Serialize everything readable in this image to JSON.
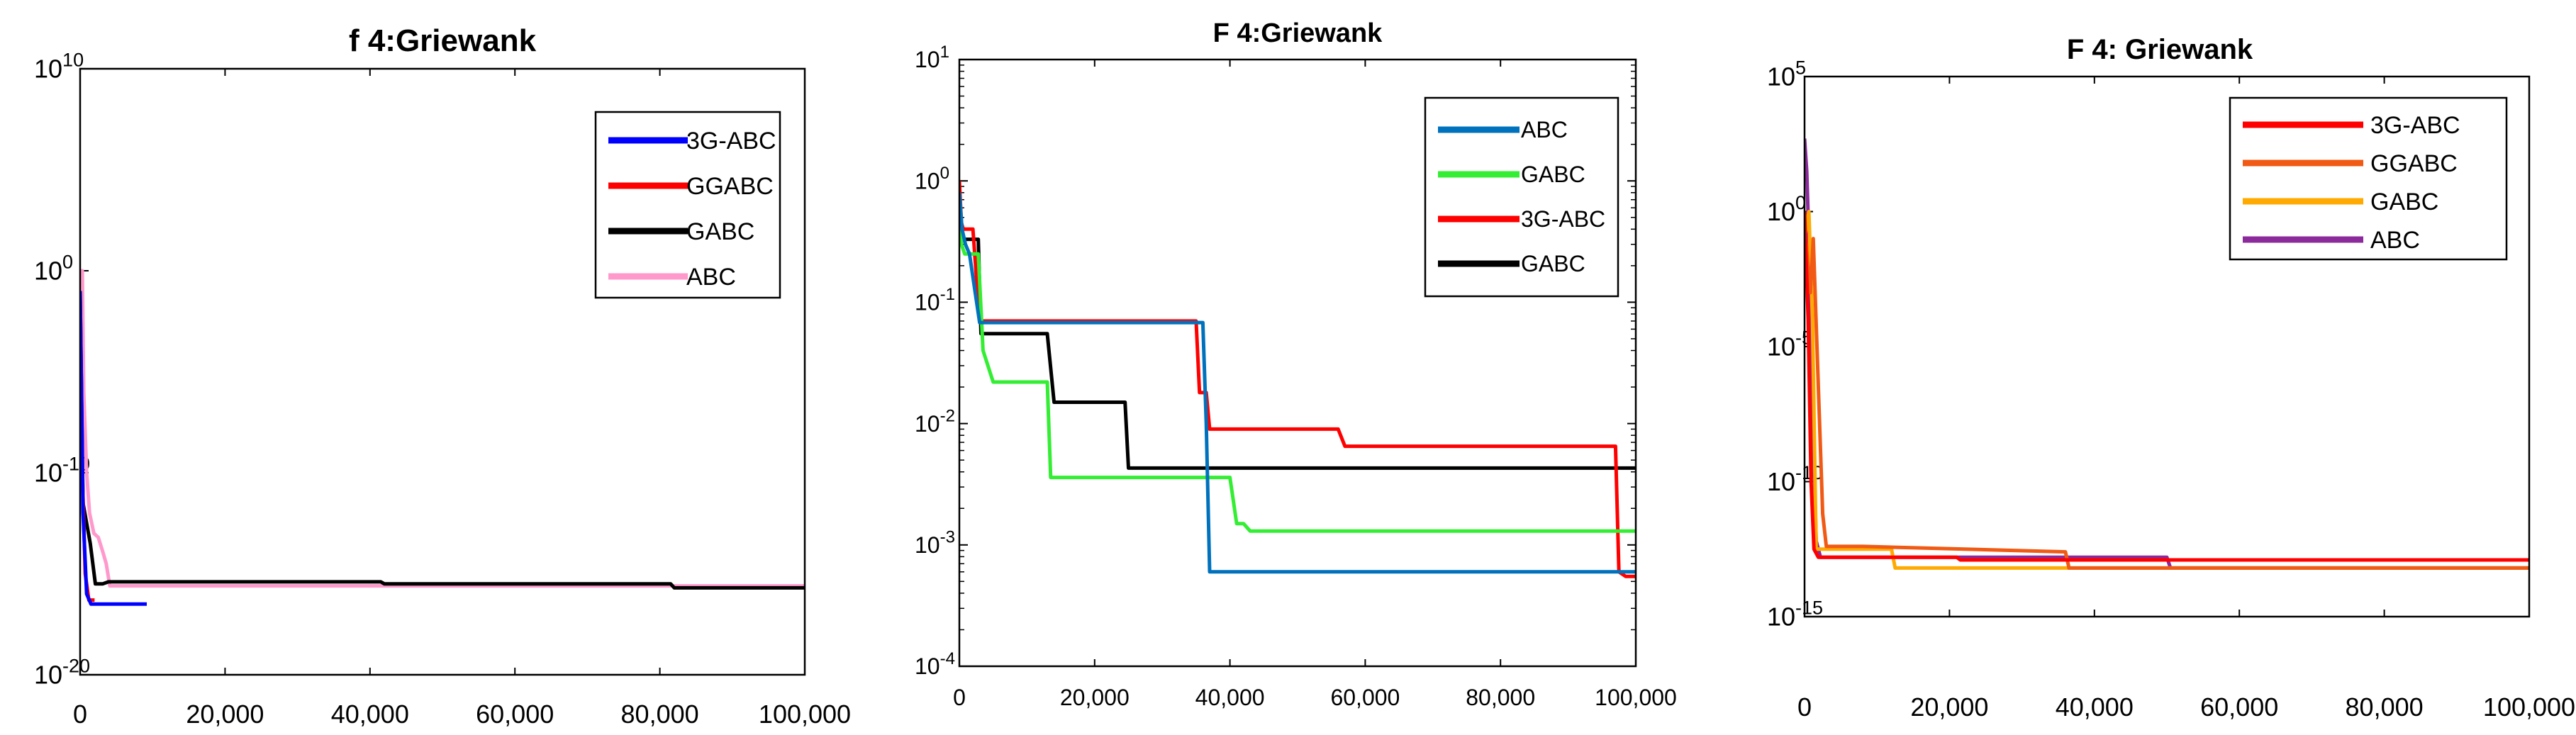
{
  "chart_data": [
    {
      "type": "line",
      "title": "f 4:Griewank",
      "xlabel": "",
      "ylabel": "",
      "yscale": "log",
      "xlim": [
        0,
        100000
      ],
      "ylim_exp": [
        -20,
        10
      ],
      "xticks": [
        "0",
        "20,000",
        "40,000",
        "60,000",
        "80,000",
        "100,000"
      ],
      "ytick_exps": [
        -20,
        -10,
        0,
        10
      ],
      "grid": false,
      "legend_position": "top-right",
      "series": [
        {
          "name": "3G-ABC",
          "color": "#0000ff",
          "x": [
            0,
            400,
            900,
            1500,
            9200
          ],
          "y_exp": [
            -1,
            -12,
            -16,
            -16.5,
            -16.5
          ]
        },
        {
          "name": "GGABC",
          "color": "#ff0000",
          "x": [
            0,
            300,
            700,
            1200,
            2000
          ],
          "y_exp": [
            -4,
            -10,
            -15,
            -16.3,
            -16.3
          ]
        },
        {
          "name": "GABC",
          "color": "#000000",
          "x": [
            0,
            400,
            900,
            1400,
            2100,
            2600,
            3100,
            3900,
            41500,
            42000,
            81500,
            82000,
            100000
          ],
          "y_exp": [
            -1,
            -11.5,
            -12.5,
            -13.5,
            -15.5,
            -15.5,
            -15.5,
            -15.4,
            -15.4,
            -15.5,
            -15.5,
            -15.7,
            -15.7
          ]
        },
        {
          "name": "ABC",
          "color": "#ff99cc",
          "x": [
            0,
            300,
            500,
            900,
            1300,
            1900,
            2500,
            3200,
            3600,
            4100,
            100000
          ],
          "y_exp": [
            0,
            0,
            -6,
            -10,
            -12,
            -13,
            -13.2,
            -14,
            -14.5,
            -15.6,
            -15.6
          ]
        }
      ]
    },
    {
      "type": "line",
      "title": "F 4:Griewank",
      "xlabel": "",
      "ylabel": "",
      "yscale": "log",
      "xlim": [
        0,
        100000
      ],
      "ylim_exp": [
        -4,
        1
      ],
      "xticks": [
        "0",
        "20,000",
        "40,000",
        "60,000",
        "80,000",
        "100,000"
      ],
      "ytick_exps": [
        -4,
        -3,
        -2,
        -1,
        0,
        1
      ],
      "grid": false,
      "legend_position": "top-right",
      "series": [
        {
          "name": "ABC",
          "color": "#0072bd",
          "x": [
            0,
            400,
            900,
            1500,
            3000,
            36000,
            36500,
            37000,
            100000
          ],
          "y": [
            0.8,
            0.4,
            0.3,
            0.25,
            0.068,
            0.068,
            0.01,
            0.0006,
            0.0006
          ]
        },
        {
          "name": "GABC",
          "color": "#33ee33",
          "x": [
            0,
            300,
            800,
            2800,
            3500,
            5000,
            13000,
            13500,
            40000,
            41000,
            42000,
            43000,
            100000
          ],
          "y": [
            0.8,
            0.3,
            0.25,
            0.25,
            0.04,
            0.022,
            0.022,
            0.0036,
            0.0036,
            0.0015,
            0.0015,
            0.0013,
            0.0013
          ]
        },
        {
          "name": "3G-ABC",
          "color": "#ff0000",
          "x": [
            0,
            300,
            600,
            2000,
            3000,
            3500,
            35000,
            35500,
            36500,
            37000,
            56000,
            57000,
            97000,
            97500,
            98500,
            100000
          ],
          "y": [
            1.0,
            0.45,
            0.4,
            0.4,
            0.07,
            0.07,
            0.07,
            0.018,
            0.018,
            0.009,
            0.009,
            0.0065,
            0.0065,
            0.0006,
            0.00055,
            0.00055
          ]
        },
        {
          "name": "GABC",
          "color": "#000000",
          "x": [
            0,
            300,
            800,
            2800,
            3200,
            13000,
            14000,
            24500,
            25000,
            100000
          ],
          "y": [
            0.9,
            0.35,
            0.33,
            0.33,
            0.055,
            0.055,
            0.015,
            0.015,
            0.0043,
            0.0043
          ]
        }
      ]
    },
    {
      "type": "line",
      "title": "F 4: Griewank",
      "xlabel": "",
      "ylabel": "",
      "yscale": "log",
      "xlim": [
        0,
        100000
      ],
      "ylim_exp": [
        -15,
        5
      ],
      "xticks": [
        "0",
        "20,000",
        "40,000",
        "60,000",
        "80,000",
        "100,000"
      ],
      "ytick_exps": [
        -15,
        -10,
        -5,
        0,
        5
      ],
      "grid": false,
      "legend_position": "top-right",
      "series": [
        {
          "name": "3G-ABC",
          "color": "#ff0000",
          "x": [
            0,
            500,
            900,
            1300,
            1900,
            3000,
            21000,
            21500,
            100000
          ],
          "y_exp": [
            0,
            -4,
            -10,
            -12.5,
            -12.8,
            -12.8,
            -12.8,
            -12.9,
            -12.9
          ]
        },
        {
          "name": "GGABC",
          "color": "#f05a14",
          "x": [
            0,
            800,
            1200,
            2500,
            3000,
            8000,
            36000,
            36500,
            100000
          ],
          "y_exp": [
            -0.5,
            -3,
            -1,
            -11.2,
            -12.4,
            -12.4,
            -12.6,
            -13.2,
            -13.2
          ]
        },
        {
          "name": "GABC",
          "color": "#ffaa00",
          "x": [
            0,
            600,
            1100,
            1600,
            2200,
            12000,
            12500,
            100000
          ],
          "y_exp": [
            -1,
            0,
            -4,
            -12.5,
            -12.5,
            -12.5,
            -13.2,
            -13.2
          ]
        },
        {
          "name": "ABC",
          "color": "#8b2a9b",
          "x": [
            0,
            300,
            600,
            1000,
            1600,
            2200,
            50000,
            50500,
            100000
          ],
          "y_exp": [
            2.7,
            1.5,
            -1,
            -6,
            -12.2,
            -12.8,
            -12.8,
            -13.2,
            -13.2
          ]
        }
      ]
    }
  ]
}
